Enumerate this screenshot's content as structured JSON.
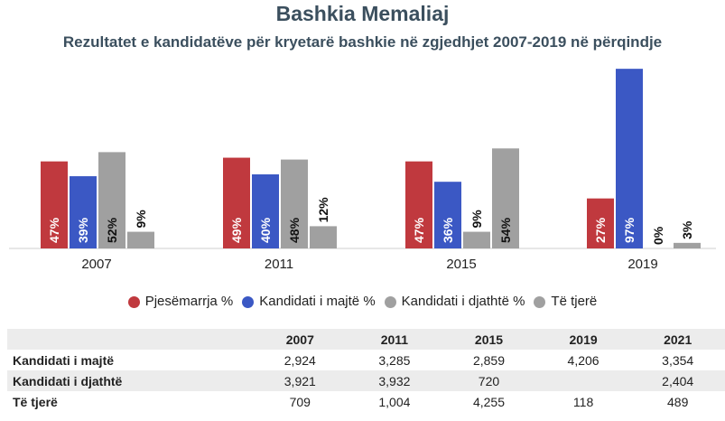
{
  "title": "Bashkia Memaliaj",
  "subtitle": "Rezultatet e kandidatëve për kryetarë bashkie në zgjedhjet 2007-2019 në përqindje",
  "chart_data": {
    "type": "bar",
    "title": "Bashkia Memaliaj",
    "subtitle": "Rezultatet e kandidatëve për kryetarë bashkie në zgjedhjet 2007-2019 në përqindje",
    "categories": [
      "2007",
      "2011",
      "2015",
      "2019"
    ],
    "series": [
      {
        "name": "Pjesëmarrja %",
        "color": "#c0393e",
        "values": [
          47,
          49,
          47,
          27
        ],
        "labels": [
          "47%",
          "49%",
          "47%",
          "27%"
        ]
      },
      {
        "name": "Kandidati i majtë %",
        "color": "#3b58c4",
        "values": [
          39,
          40,
          36,
          97
        ],
        "labels": [
          "39%",
          "40%",
          "36%",
          "97%"
        ]
      },
      {
        "name": "Kandidati i djathtë %",
        "color": "#a0a0a0",
        "values": [
          52,
          48,
          9,
          0
        ],
        "labels": [
          "52%",
          "48%",
          "9%",
          "0%"
        ]
      },
      {
        "name": "Të tjerë",
        "color": "#a0a0a0",
        "values": [
          9,
          12,
          54,
          3
        ],
        "labels": [
          "9%",
          "12%",
          "54%",
          "3%"
        ]
      }
    ],
    "ylim": [
      0,
      100
    ],
    "grid": false,
    "legend_position": "bottom"
  },
  "legend": [
    {
      "label": "Pjesëmarrja %",
      "color": "#c0393e"
    },
    {
      "label": "Kandidati i majtë %",
      "color": "#3b58c4"
    },
    {
      "label": "Kandidati i djathtë %",
      "color": "#a0a0a0"
    },
    {
      "label": "Të tjerë",
      "color": "#a0a0a0"
    }
  ],
  "table": {
    "headers": [
      "",
      "2007",
      "2011",
      "2015",
      "2019",
      "2021"
    ],
    "rows": [
      {
        "label": "Kandidati i majtë",
        "cells": [
          "2,924",
          "3,285",
          "2,859",
          "4,206",
          "3,354"
        ]
      },
      {
        "label": "Kandidati i djathtë",
        "cells": [
          "3,921",
          "3,932",
          "720",
          "",
          "2,404"
        ]
      },
      {
        "label": "Të tjerë",
        "cells": [
          "709",
          "1,004",
          "4,255",
          "118",
          "489"
        ]
      }
    ]
  }
}
